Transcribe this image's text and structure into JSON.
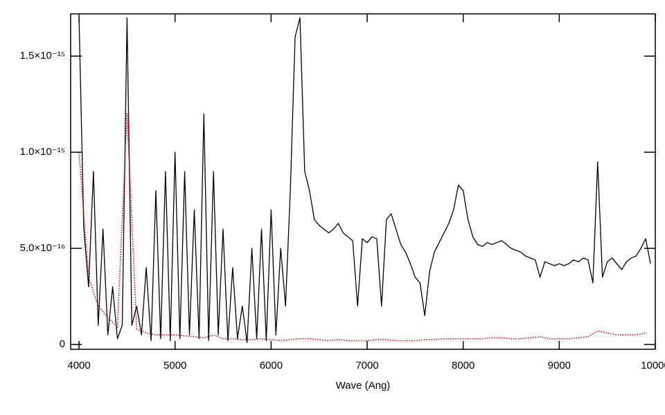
{
  "chart_data": {
    "type": "line",
    "xlabel": "Wave (Ang)",
    "xlim": [
      3913,
      10000
    ],
    "xticks": [
      4000,
      5000,
      6000,
      7000,
      8000,
      9000,
      10000
    ],
    "ylim": [
      -2.5e-17,
      1.72e-15
    ],
    "yticks": [
      0,
      {
        "value": 5e-16,
        "label": "5.0×10⁻¹⁶"
      },
      {
        "value": 1e-15,
        "label": "1.0×10⁻¹⁵"
      },
      {
        "value": 1.5e-15,
        "label": "1.5×10⁻¹⁵"
      }
    ],
    "grid": false,
    "series": [
      {
        "color": "#000000",
        "linestyle": "solid",
        "x": [
          4000,
          4050,
          4100,
          4150,
          4200,
          4250,
          4300,
          4350,
          4400,
          4450,
          4500,
          4550,
          4600,
          4650,
          4700,
          4750,
          4800,
          4850,
          4900,
          4950,
          5000,
          5050,
          5100,
          5150,
          5200,
          5250,
          5300,
          5350,
          5400,
          5450,
          5500,
          5550,
          5600,
          5650,
          5700,
          5750,
          5800,
          5850,
          5900,
          5950,
          6000,
          6050,
          6100,
          6150,
          6200,
          6250,
          6300,
          6350,
          6400,
          6450,
          6500,
          6550,
          6600,
          6650,
          6700,
          6750,
          6800,
          6850,
          6900,
          6950,
          7000,
          7050,
          7100,
          7150,
          7200,
          7250,
          7300,
          7350,
          7400,
          7450,
          7500,
          7550,
          7600,
          7650,
          7700,
          7750,
          7800,
          7850,
          7900,
          7950,
          8000,
          8050,
          8100,
          8150,
          8200,
          8250,
          8300,
          8350,
          8400,
          8450,
          8500,
          8550,
          8600,
          8650,
          8700,
          8750,
          8800,
          8850,
          8900,
          8950,
          9000,
          9050,
          9100,
          9150,
          9200,
          9250,
          9300,
          9350,
          9400,
          9450,
          9500,
          9550,
          9600,
          9650,
          9700,
          9750,
          9800,
          9850,
          9900,
          9950
        ],
        "values": [
          1.7e-15,
          6e-16,
          3e-16,
          9e-16,
          1e-16,
          6e-16,
          5e-17,
          3e-16,
          3e-17,
          1e-16,
          1.7e-15,
          1e-16,
          2e-16,
          5e-17,
          4e-16,
          2e-17,
          8e-16,
          3e-17,
          9e-16,
          2e-17,
          1e-15,
          3e-17,
          9e-16,
          5e-17,
          7e-16,
          3e-17,
          1.2e-15,
          2e-17,
          9e-16,
          5e-17,
          6e-16,
          2e-17,
          4e-16,
          3e-17,
          2e-16,
          1e-17,
          5e-16,
          3e-17,
          6e-16,
          2e-17,
          7e-16,
          5e-17,
          5e-16,
          2e-16,
          8e-16,
          1.6e-15,
          1.7e-15,
          9e-16,
          8e-16,
          6.5e-16,
          6.2e-16,
          6e-16,
          5.8e-16,
          6e-16,
          6.3e-16,
          5.8e-16,
          5.6e-16,
          5.4e-16,
          2e-16,
          5.5e-16,
          5.3e-16,
          5.6e-16,
          5.5e-16,
          2e-16,
          6.5e-16,
          6.8e-16,
          6e-16,
          5.2e-16,
          4.8e-16,
          4.2e-16,
          3.5e-16,
          3.2e-16,
          1.5e-16,
          3.8e-16,
          4.8e-16,
          5.3e-16,
          5.8e-16,
          6.3e-16,
          7e-16,
          8.3e-16,
          8e-16,
          6.5e-16,
          5.6e-16,
          5.2e-16,
          5.1e-16,
          5.3e-16,
          5.2e-16,
          5.3e-16,
          5.4e-16,
          5.2e-16,
          5e-16,
          4.9e-16,
          4.8e-16,
          4.6e-16,
          4.5e-16,
          4.4e-16,
          3.5e-16,
          4.3e-16,
          4.2e-16,
          4.1e-16,
          4.2e-16,
          4.1e-16,
          4.2e-16,
          4.4e-16,
          4.3e-16,
          4.5e-16,
          4.4e-16,
          3.2e-16,
          9.5e-16,
          3.5e-16,
          4.3e-16,
          4.5e-16,
          4.2e-16,
          3.9e-16,
          4.3e-16,
          4.5e-16,
          4.6e-16,
          5e-16,
          5.5e-16,
          4.2e-16
        ]
      },
      {
        "color": "#e00000",
        "linestyle": "dotted",
        "x": [
          4000,
          4100,
          4200,
          4300,
          4400,
          4500,
          4600,
          4700,
          4800,
          4900,
          5000,
          5100,
          5200,
          5300,
          5400,
          5500,
          5600,
          5700,
          5800,
          5900,
          6000,
          6100,
          6200,
          6300,
          6400,
          6500,
          6600,
          6700,
          6800,
          6900,
          7000,
          7100,
          7200,
          7300,
          7400,
          7500,
          7600,
          7700,
          7800,
          7900,
          8000,
          8100,
          8200,
          8300,
          8400,
          8500,
          8600,
          8700,
          8800,
          8900,
          9000,
          9100,
          9200,
          9300,
          9400,
          9500,
          9600,
          9700,
          9800,
          9900
        ],
        "values": [
          1e-15,
          3.5e-16,
          2e-16,
          1.4e-16,
          9e-17,
          1.2e-15,
          8e-17,
          6e-17,
          5e-17,
          5e-17,
          5e-17,
          4.5e-17,
          4e-17,
          3.5e-17,
          5e-17,
          3e-17,
          3e-17,
          2.5e-17,
          2.5e-17,
          3e-17,
          2.5e-17,
          2e-17,
          2.5e-17,
          3e-17,
          3e-17,
          2.5e-17,
          2e-17,
          2.5e-17,
          2e-17,
          2e-17,
          2e-17,
          2.5e-17,
          2.5e-17,
          2e-17,
          2e-17,
          2e-17,
          2.5e-17,
          2.5e-17,
          3e-17,
          3e-17,
          3e-17,
          3e-17,
          3e-17,
          3.5e-17,
          3.5e-17,
          3e-17,
          3e-17,
          3.5e-17,
          4e-17,
          3e-17,
          3e-17,
          3e-17,
          3.5e-17,
          4e-17,
          7e-17,
          6e-17,
          5e-17,
          5e-17,
          5e-17,
          6e-17
        ]
      }
    ]
  }
}
